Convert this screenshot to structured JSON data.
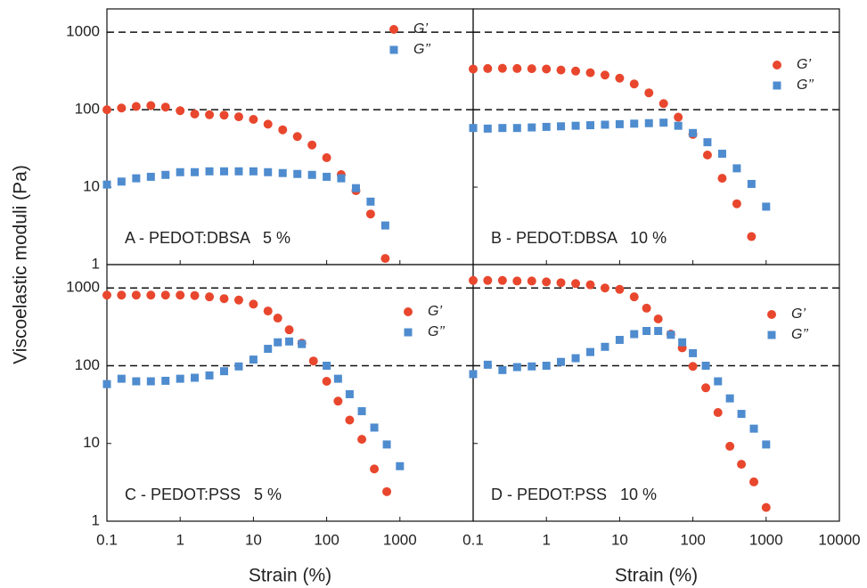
{
  "ylabel": "Viscoelastic moduli (Pa)",
  "chart_data": [
    {
      "type": "scatter",
      "label": "A - PEDOT:DBSA   5 %",
      "log_x": true,
      "log_y": true,
      "legend": "upper right",
      "xlim": [
        0.1,
        10000
      ],
      "ylim": [
        1,
        2000
      ],
      "xticks": [
        0.1,
        1,
        10,
        100,
        1000
      ],
      "yticks": [
        1,
        10,
        100,
        1000
      ],
      "hlines": [
        100,
        1000
      ],
      "x": [
        0.1,
        0.158,
        0.251,
        0.398,
        0.631,
        1,
        1.58,
        2.51,
        3.98,
        6.31,
        10,
        15.8,
        25.1,
        39.8,
        63.1,
        100,
        158,
        251,
        398,
        631
      ],
      "series": [
        {
          "name": "G’",
          "color": "#e8472e",
          "marker": "circle",
          "values": [
            100,
            105,
            110,
            113,
            108,
            97,
            88,
            86,
            85,
            81,
            75,
            65,
            55,
            45,
            35,
            24,
            14.5,
            9,
            4.5,
            1.2
          ]
        },
        {
          "name": "G’’",
          "color": "#4f8ccf",
          "marker": "square",
          "values": [
            10.8,
            11.8,
            13,
            13.6,
            14.4,
            15.6,
            15.6,
            16,
            16,
            16,
            16,
            15.6,
            15.2,
            14.8,
            14.4,
            13.6,
            13,
            9.7,
            6.5,
            3.2
          ]
        }
      ]
    },
    {
      "type": "scatter",
      "label": "B - PEDOT:DBSA   10 %",
      "log_x": true,
      "log_y": true,
      "legend": "upper right",
      "xlim": [
        0.1,
        10000
      ],
      "ylim": [
        1,
        2000
      ],
      "xticks": [
        0.1,
        1,
        10,
        100,
        1000,
        10000
      ],
      "yticks": [
        1,
        10,
        100,
        1000
      ],
      "hlines": [
        100,
        1000
      ],
      "x": [
        0.1,
        0.158,
        0.251,
        0.398,
        0.631,
        1,
        1.58,
        2.51,
        3.98,
        6.31,
        10,
        15.8,
        25.1,
        39.8,
        63.1,
        100,
        158,
        251,
        398,
        631,
        1000
      ],
      "series": [
        {
          "name": "G’",
          "color": "#e8472e",
          "marker": "circle",
          "values": [
            335,
            340,
            342,
            340,
            338,
            335,
            325,
            315,
            300,
            280,
            255,
            215,
            165,
            120,
            80,
            48,
            26,
            13,
            6.1,
            2.3,
            null
          ]
        },
        {
          "name": "G’’",
          "color": "#4f8ccf",
          "marker": "square",
          "values": [
            58,
            57,
            58,
            58,
            59,
            60,
            61,
            62,
            63,
            64,
            65,
            66,
            67,
            68,
            62,
            50,
            38,
            27,
            17.5,
            11,
            5.6
          ]
        }
      ]
    },
    {
      "type": "scatter",
      "label": "C - PEDOT:PSS   5 %",
      "xlabel": "Strain (%)",
      "log_x": true,
      "log_y": true,
      "legend": "upper right",
      "xlim": [
        0.1,
        10000
      ],
      "ylim": [
        1,
        2000
      ],
      "xticks": [
        0.1,
        1,
        10,
        100,
        1000
      ],
      "yticks": [
        1,
        10,
        100,
        1000
      ],
      "hlines": [
        100,
        1000
      ],
      "x": [
        0.1,
        0.158,
        0.251,
        0.398,
        0.631,
        1,
        1.58,
        2.51,
        3.98,
        6.31,
        10,
        15.8,
        21.5,
        30.8,
        45.8,
        66,
        100,
        143,
        206,
        302,
        447,
        662,
        1000
      ],
      "series": [
        {
          "name": "G’",
          "color": "#e8472e",
          "marker": "circle",
          "values": [
            810,
            810,
            810,
            810,
            810,
            810,
            800,
            770,
            730,
            700,
            620,
            506,
            410,
            290,
            195,
            115,
            63,
            35,
            20,
            11.3,
            4.7,
            2.4,
            null
          ]
        },
        {
          "name": "G’’",
          "color": "#4f8ccf",
          "marker": "square",
          "values": [
            58,
            68,
            63,
            63,
            64,
            68,
            70,
            75,
            85,
            98,
            120,
            165,
            200,
            205,
            190,
            null,
            100,
            68,
            43,
            26,
            16,
            9.7,
            5.1
          ]
        }
      ]
    },
    {
      "type": "scatter",
      "label": "D - PEDOT:PSS   10 %",
      "xlabel": "Strain (%)",
      "log_x": true,
      "log_y": true,
      "legend": "upper right",
      "xlim": [
        0.1,
        10000
      ],
      "ylim": [
        1,
        2000
      ],
      "xticks": [
        0.1,
        1,
        10,
        100,
        1000,
        10000
      ],
      "yticks": [
        1,
        10,
        100,
        1000
      ],
      "hlines": [
        100,
        1000
      ],
      "x": [
        0.1,
        0.158,
        0.251,
        0.398,
        0.631,
        1,
        1.58,
        2.51,
        3.98,
        6.31,
        10,
        15.8,
        23.3,
        33.6,
        50,
        71.5,
        100,
        150,
        220,
        320,
        460,
        680,
        1000
      ],
      "series": [
        {
          "name": "G’",
          "color": "#e8472e",
          "marker": "circle",
          "values": [
            1250,
            1250,
            1250,
            1230,
            1230,
            1200,
            1170,
            1140,
            1100,
            1000,
            960,
            770,
            550,
            400,
            255,
            170,
            98,
            52,
            25,
            9.2,
            5.4,
            3.2,
            1.5
          ]
        },
        {
          "name": "G’’",
          "color": "#4f8ccf",
          "marker": "square",
          "values": [
            78,
            103,
            88,
            96,
            98,
            100,
            112,
            125,
            150,
            175,
            215,
            255,
            280,
            280,
            250,
            200,
            145,
            100,
            63,
            38,
            24,
            15.5,
            9.7
          ]
        }
      ]
    }
  ]
}
